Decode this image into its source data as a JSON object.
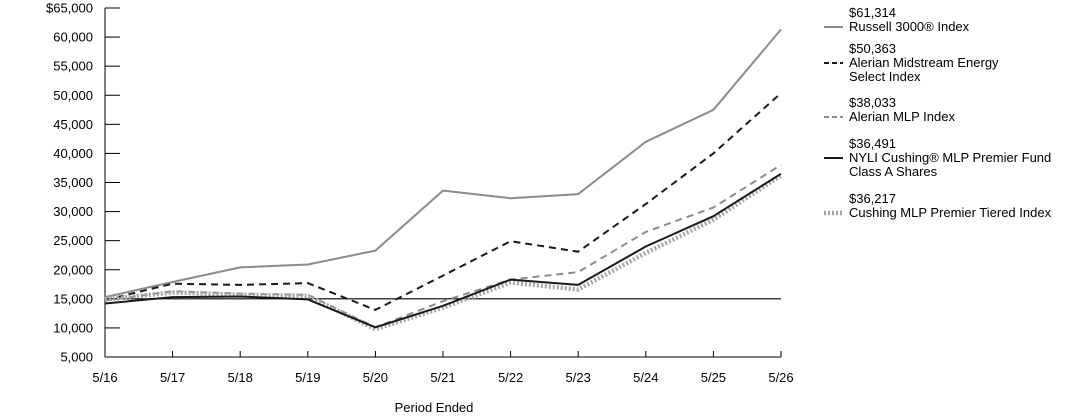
{
  "chart_data": {
    "type": "line",
    "title": "",
    "xlabel": "Period Ended",
    "ylabel": "",
    "ylim": [
      5000,
      65000
    ],
    "yticks": [
      5000,
      10000,
      15000,
      20000,
      25000,
      30000,
      35000,
      40000,
      45000,
      50000,
      55000,
      60000,
      65000
    ],
    "ytick_labels": [
      "5,000",
      "10,000",
      "15,000",
      "20,000",
      "25,000",
      "30,000",
      "35,000",
      "40,000",
      "45,000",
      "50,000",
      "55,000",
      "60,000",
      "$65,000"
    ],
    "x": [
      "5/16",
      "5/17",
      "5/18",
      "5/19",
      "5/20",
      "5/21",
      "5/22",
      "5/23",
      "5/24",
      "5/25",
      "5/26"
    ],
    "reference_line": 15000,
    "grid": false,
    "legend_position": "right",
    "series": [
      {
        "name": "Russell 3000® Index",
        "end_value_label": "$61,314",
        "color": "#8c8c8c",
        "style": "solid",
        "values": [
          15300,
          17900,
          20400,
          20900,
          23300,
          33600,
          32300,
          33000,
          42000,
          47500,
          61314
        ]
      },
      {
        "name": "Alerian Midstream Energy Select Index",
        "end_value_label": "$50,363",
        "color": "#1a1a1a",
        "style": "dash",
        "values": [
          14800,
          17600,
          17400,
          17700,
          13100,
          19000,
          24900,
          23100,
          31300,
          40000,
          50363
        ]
      },
      {
        "name": "Alerian MLP Index",
        "end_value_label": "$38,033",
        "color": "#8c8c8c",
        "style": "dash",
        "values": [
          14700,
          16300,
          15900,
          15700,
          10100,
          14600,
          18300,
          19600,
          26500,
          30700,
          38033
        ]
      },
      {
        "name": "NYLI Cushing® MLP Premier Fund Class A Shares",
        "end_value_label": "$36,491",
        "color": "#1a1a1a",
        "style": "solid",
        "values": [
          14200,
          15300,
          15400,
          14900,
          10100,
          13800,
          18300,
          17400,
          24000,
          29200,
          36491
        ]
      },
      {
        "name": "Cushing MLP Premier Tiered Index",
        "end_value_label": "$36,217",
        "color": "#a6a6a6",
        "style": "dotted-thick",
        "values": [
          14900,
          16100,
          15700,
          15500,
          9800,
          13500,
          17800,
          16600,
          22900,
          28600,
          36217
        ]
      }
    ]
  }
}
